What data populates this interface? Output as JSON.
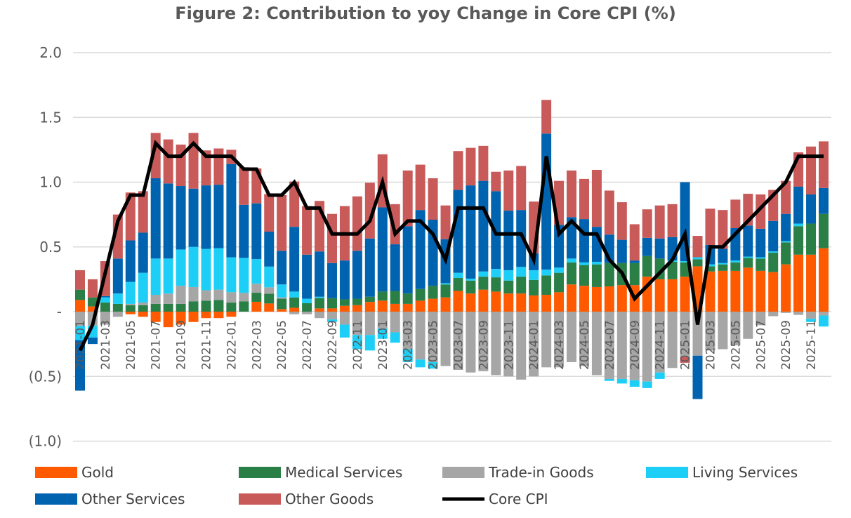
{
  "chart_data": {
    "type": "bar",
    "subtype": "stacked bar with line overlay",
    "title": "Figure 2: Contribution to yoy Change in Core CPI (%)",
    "xlabel": "",
    "ylabel": "",
    "ylim": [
      -1.0,
      2.0
    ],
    "yticks": [
      2.0,
      1.5,
      1.0,
      0.5,
      0,
      -0.5,
      -1.0
    ],
    "ytick_labels": [
      "2.0",
      "1.5",
      "1.0",
      "0.5",
      "-",
      "(0.5)",
      "(1.0)"
    ],
    "grid": true,
    "legend_position": "bottom",
    "categories": [
      "2021-01",
      "2021-02",
      "2021-03",
      "2021-04",
      "2021-05",
      "2021-06",
      "2021-07",
      "2021-08",
      "2021-09",
      "2021-10",
      "2021-11",
      "2021-12",
      "2022-01",
      "2022-02",
      "2022-03",
      "2022-04",
      "2022-05",
      "2022-06",
      "2022-07",
      "2022-08",
      "2022-09",
      "2022-10",
      "2022-11",
      "2022-12",
      "2023-01",
      "2023-02",
      "2023-03",
      "2023-04",
      "2023-05",
      "2023-06",
      "2023-07",
      "2023-08",
      "2023-09",
      "2023-10",
      "2023-11",
      "2023-12",
      "2024-01",
      "2024-02",
      "2024-03",
      "2024-04",
      "2024-05",
      "2024-06",
      "2024-07",
      "2024-08",
      "2024-09",
      "2024-10",
      "2024-11",
      "2024-12",
      "2025-01",
      "2025-02",
      "2025-03",
      "2025-04",
      "2025-05",
      "2025-06",
      "2025-07",
      "2025-08",
      "2025-09",
      "2025-10",
      "2025-11",
      "2025-12"
    ],
    "xtick_labels": [
      "2021-01",
      "2021-03",
      "2021-05",
      "2021-07",
      "2021-09",
      "2021-11",
      "2022-01",
      "2022-03",
      "2022-05",
      "2022-07",
      "2022-09",
      "2022-11",
      "2023-01",
      "2023-03",
      "2023-05",
      "2023-07",
      "2023-09",
      "2023-11",
      "2024-01",
      "2024-03",
      "2024-05",
      "2024-07",
      "2024-09",
      "2024-11",
      "2025-01",
      "2025-03",
      "2025-05",
      "2025-07",
      "2025-09",
      "2025-11"
    ],
    "series": [
      {
        "name": "Gold",
        "kind": "bar",
        "color": "#FF5A00",
        "values": [
          0.09,
          0.04,
          0,
          0,
          -0.02,
          -0.04,
          -0.08,
          -0.12,
          -0.1,
          -0.08,
          -0.05,
          -0.05,
          -0.04,
          0,
          0.076,
          0.063,
          0.02,
          0.03,
          0,
          0.025,
          0.025,
          0.045,
          0.05,
          0.075,
          0.085,
          0.06,
          0.06,
          0.085,
          0.1,
          0.11,
          0.16,
          0.14,
          0.17,
          0.155,
          0.14,
          0.14,
          0.125,
          0.13,
          0.15,
          0.21,
          0.2,
          0.19,
          0.195,
          0.205,
          0.205,
          0.27,
          0.25,
          0.25,
          0.27,
          0.35,
          0.31,
          0.315,
          0.315,
          0.34,
          0.315,
          0.305,
          0.365,
          0.44,
          0.44,
          0.49
        ]
      },
      {
        "name": "Medical Services",
        "kind": "bar",
        "color": "#2A7F47",
        "values": [
          0.08,
          0.07,
          0.07,
          0.06,
          0.05,
          0.05,
          0.06,
          0.06,
          0.06,
          0.08,
          0.085,
          0.09,
          0.07,
          0.08,
          0.07,
          0.075,
          0.08,
          0.08,
          0.065,
          0.08,
          0.08,
          0.05,
          0.05,
          0.04,
          0.07,
          0.1,
          0.08,
          0.09,
          0.1,
          0.1,
          0.1,
          0.1,
          0.1,
          0.11,
          0.1,
          0.13,
          0.12,
          0.15,
          0.15,
          0.17,
          0.16,
          0.175,
          0.18,
          0.17,
          0.17,
          0.16,
          0.16,
          0.135,
          0.11,
          0.055,
          0.04,
          0.05,
          0.065,
          0.075,
          0.095,
          0.15,
          0.17,
          0.22,
          0.24,
          0.265
        ]
      },
      {
        "name": "Trade-in Goods",
        "kind": "bar",
        "color": "#A6A6A6",
        "values": [
          -0.11,
          -0.11,
          -0.1,
          -0.04,
          0.01,
          0.02,
          0.07,
          0.08,
          0.14,
          0.11,
          0.08,
          0.08,
          0.08,
          0.065,
          0.07,
          0.05,
          0.01,
          -0.02,
          -0.02,
          -0.05,
          -0.06,
          -0.1,
          -0.18,
          -0.18,
          -0.13,
          -0.16,
          -0.29,
          -0.37,
          -0.39,
          -0.42,
          -0.45,
          -0.47,
          -0.46,
          -0.49,
          -0.5,
          -0.525,
          -0.5,
          -0.43,
          -0.43,
          -0.39,
          -0.42,
          -0.49,
          -0.52,
          -0.52,
          -0.53,
          -0.54,
          -0.47,
          -0.435,
          -0.35,
          -0.34,
          -0.3,
          -0.29,
          -0.26,
          -0.21,
          -0.105,
          -0.035,
          -0.01,
          -0.025,
          -0.055,
          -0.03
        ]
      },
      {
        "name": "Living Services",
        "kind": "bar",
        "color": "#1DCFF7",
        "values": [
          -0.11,
          -0.09,
          0.04,
          0.08,
          0.17,
          0.23,
          0.28,
          0.27,
          0.28,
          0.31,
          0.32,
          0.32,
          0.27,
          0.27,
          0.19,
          0.16,
          0.1,
          0.045,
          0.035,
          0.01,
          -0.02,
          -0.1,
          -0.11,
          -0.12,
          -0.08,
          -0.08,
          -0.1,
          -0.06,
          -0.05,
          0.01,
          0.04,
          0.015,
          0.04,
          0.065,
          0.08,
          0.075,
          0.075,
          0.045,
          0.04,
          0.03,
          0.02,
          0.02,
          -0.015,
          -0.035,
          -0.05,
          -0.05,
          -0.05,
          0.01,
          0.01,
          0.015,
          0.015,
          0.01,
          0.015,
          0.01,
          0.01,
          0.01,
          0.01,
          0.02,
          -0.025,
          -0.085
        ]
      },
      {
        "name": "Other Services",
        "kind": "bar",
        "color": "#0063AF",
        "values": [
          -0.39,
          -0.05,
          0.01,
          0.27,
          0.32,
          0.31,
          0.62,
          0.58,
          0.49,
          0.45,
          0.49,
          0.49,
          0.72,
          0.41,
          0.43,
          0.27,
          0.26,
          0.5,
          0.34,
          0.35,
          0.27,
          0.3,
          0.37,
          0.45,
          0.65,
          0.36,
          0.52,
          0.61,
          0.51,
          0.34,
          0.64,
          0.72,
          0.7,
          0.6,
          0.46,
          0.44,
          0.13,
          1.05,
          0.33,
          0.32,
          0.335,
          0.27,
          0.22,
          0.18,
          0.02,
          0.14,
          0.155,
          0.18,
          0.61,
          -0.335,
          0.15,
          0.11,
          0.25,
          0.24,
          0.22,
          0.235,
          0.21,
          0.285,
          0.225,
          0.2
        ]
      },
      {
        "name": "Other Goods",
        "kind": "bar",
        "color": "#C85A5A",
        "values": [
          0.15,
          0.14,
          0.27,
          0.34,
          0.37,
          0.32,
          0.35,
          0.34,
          0.32,
          0.43,
          0.27,
          0.28,
          0.11,
          0.29,
          0.27,
          0.29,
          0.43,
          0.35,
          0.375,
          0.39,
          0.38,
          0.42,
          0.42,
          0.43,
          0.41,
          0.31,
          0.43,
          0.35,
          0.32,
          0.26,
          0.3,
          0.29,
          0.27,
          0.15,
          0.31,
          0.34,
          0.4,
          0.26,
          0.34,
          0.36,
          0.31,
          0.44,
          0.34,
          0.29,
          0.28,
          0.22,
          0.255,
          0.255,
          -0.045,
          0.165,
          0.28,
          0.3,
          0.22,
          0.245,
          0.265,
          0.24,
          0.255,
          0.265,
          0.37,
          0.36
        ]
      },
      {
        "name": "Core CPI",
        "kind": "line",
        "color": "#000000",
        "values": [
          -0.3,
          -0.1,
          0.3,
          0.7,
          0.9,
          0.9,
          1.3,
          1.2,
          1.2,
          1.3,
          1.2,
          1.2,
          1.2,
          1.1,
          1.1,
          0.9,
          0.9,
          1.0,
          0.8,
          0.8,
          0.6,
          0.6,
          0.6,
          0.7,
          1.0,
          0.6,
          0.7,
          0.7,
          0.6,
          0.4,
          0.8,
          0.8,
          0.8,
          0.6,
          0.6,
          0.6,
          0.4,
          1.2,
          0.6,
          0.7,
          0.6,
          0.6,
          0.4,
          0.3,
          0.1,
          0.2,
          0.3,
          0.4,
          0.6,
          -0.1,
          0.5,
          0.5,
          0.6,
          0.7,
          0.8,
          0.9,
          1.0,
          1.2,
          1.2,
          1.2
        ]
      }
    ]
  }
}
